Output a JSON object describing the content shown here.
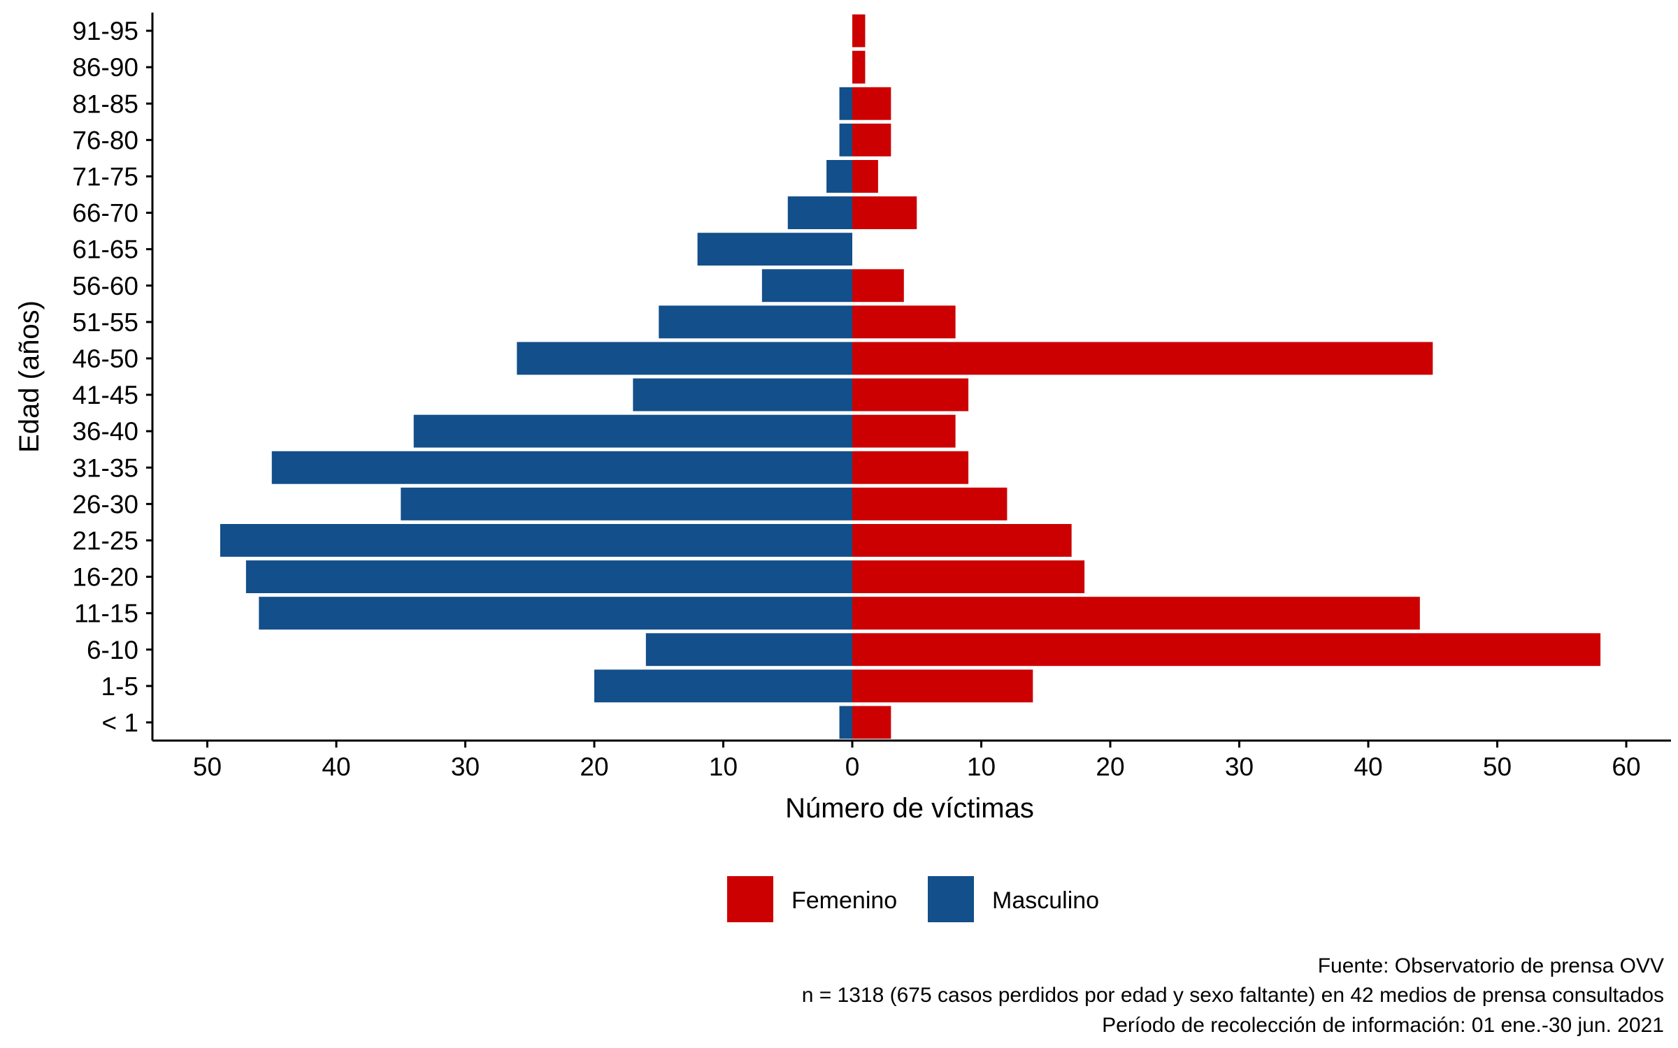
{
  "chart_data": {
    "type": "bar",
    "orientation": "horizontal",
    "layout": "population-pyramid",
    "categories": [
      "< 1",
      "1-5",
      "6-10",
      "11-15",
      "16-20",
      "21-25",
      "26-30",
      "31-35",
      "36-40",
      "41-45",
      "46-50",
      "51-55",
      "56-60",
      "61-65",
      "66-70",
      "71-75",
      "76-80",
      "81-85",
      "86-90",
      "91-95"
    ],
    "series": [
      {
        "name": "Femenino",
        "color": "#CC0000",
        "side": "right",
        "values": [
          3,
          14,
          58,
          44,
          18,
          17,
          12,
          9,
          8,
          9,
          45,
          8,
          4,
          0,
          5,
          2,
          3,
          3,
          1,
          1
        ]
      },
      {
        "name": "Masculino",
        "color": "#134F8A",
        "side": "left",
        "values": [
          1,
          20,
          16,
          46,
          47,
          49,
          35,
          45,
          34,
          17,
          26,
          15,
          7,
          12,
          5,
          2,
          1,
          1,
          0,
          0
        ]
      }
    ],
    "xlabel": "Número de víctimas",
    "ylabel": "Edad (años)",
    "xlim": [
      -55,
      63
    ],
    "xticks": [
      -50,
      -40,
      -30,
      -20,
      -10,
      0,
      10,
      20,
      30,
      40,
      50,
      60
    ],
    "xtick_labels": [
      "50",
      "40",
      "30",
      "20",
      "10",
      "0",
      "10",
      "20",
      "30",
      "40",
      "50",
      "60"
    ],
    "grid": false,
    "legend_position": "bottom",
    "caption_lines": [
      "Fuente: Observatorio de prensa OVV",
      "n = 1318 (675 casos perdidos por edad y sexo faltante) en 42 medios de prensa consultados",
      "Período de recolección de información: 01 ene.-30 jun. 2021"
    ]
  }
}
